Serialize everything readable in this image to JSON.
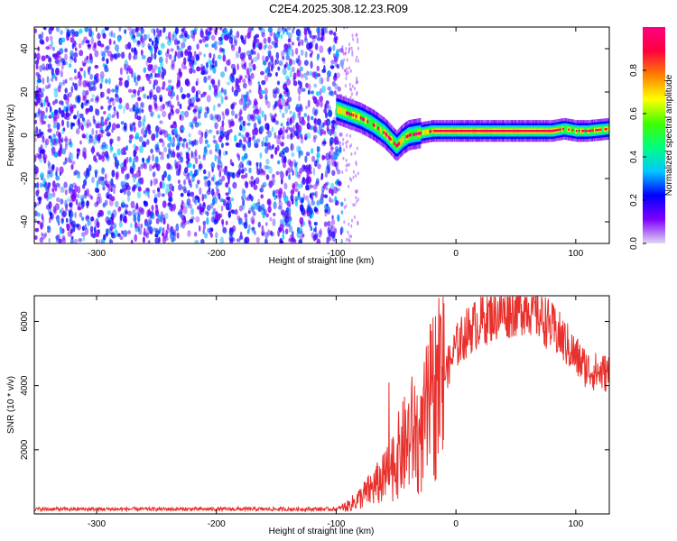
{
  "figure": {
    "title": "C2E4.2025.308.12.23.R09"
  },
  "chart_data": [
    {
      "type": "heatmap",
      "xlabel": "Height of straight line (km)",
      "ylabel": "Frequency (Hz)",
      "xlim": [
        -352,
        128
      ],
      "ylim": [
        -50,
        50
      ],
      "xticks": [
        -300,
        -200,
        -100,
        0,
        100
      ],
      "yticks": [
        -40,
        -20,
        0,
        20,
        40
      ],
      "grid": false,
      "noise_region": {
        "x": [
          -352,
          -95
        ],
        "y": [
          -50,
          50
        ],
        "description_level": "low (0.1-0.4)"
      },
      "signal_trace": {
        "x": [
          -100,
          -90,
          -80,
          -70,
          -60,
          -50,
          -45,
          -40,
          -30,
          -20,
          -10,
          0,
          20,
          40,
          60,
          80,
          90,
          100,
          110,
          128
        ],
        "y": [
          12,
          10,
          8,
          5,
          1,
          -5,
          -2,
          0,
          1,
          2,
          2,
          2,
          2,
          2,
          2,
          2,
          3,
          2,
          2,
          3
        ]
      },
      "colorbar": {
        "label": "Normalized spectral amplitude",
        "range": [
          0,
          1
        ],
        "ticks": [
          0.0,
          0.2,
          0.4,
          0.6,
          0.8
        ],
        "tick_labels": [
          "0.0",
          "0.2",
          "0.4",
          "0.6",
          "0.8"
        ],
        "colormap": [
          "#e0d8f0",
          "#8000ff",
          "#0000ff",
          "#00c8ff",
          "#00ff80",
          "#40ff00",
          "#ffff00",
          "#ff8000",
          "#ff0040",
          "#ff007f"
        ]
      }
    },
    {
      "type": "line",
      "xlabel": "Height of straight line (km)",
      "ylabel": "SNR (10 * v/v)",
      "xlim": [
        -352,
        128
      ],
      "ylim": [
        0,
        6800
      ],
      "xticks": [
        -300,
        -200,
        -100,
        0,
        100
      ],
      "yticks": [
        2000,
        4000,
        6000
      ],
      "grid": false,
      "color": "#e8302c",
      "series": [
        {
          "x": [
            -352,
            -300,
            -250,
            -200,
            -150,
            -100,
            -90,
            -80,
            -70,
            -60,
            -50,
            -40,
            -35,
            -30,
            -25,
            -20,
            -15,
            -10,
            -5,
            0,
            10,
            20,
            30,
            40,
            50,
            60,
            70,
            80,
            90,
            100,
            110,
            120,
            128
          ],
          "y": [
            150,
            150,
            150,
            150,
            150,
            150,
            250,
            500,
            800,
            1100,
            1700,
            2300,
            2600,
            2100,
            3000,
            3600,
            4000,
            4300,
            4700,
            5200,
            5700,
            6000,
            6200,
            6300,
            6400,
            6500,
            6200,
            5800,
            5400,
            4900,
            4500,
            4400,
            4400
          ]
        }
      ]
    }
  ]
}
